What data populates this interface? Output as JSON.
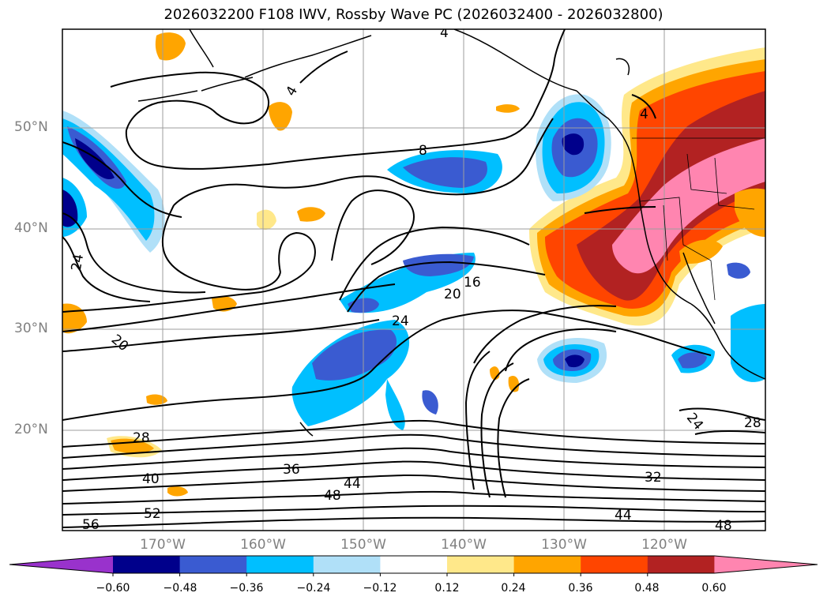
{
  "title": "2026032200 F108 IWV, Rossby Wave PC (2026032400 - 2026032800)",
  "latitude_labels": [
    "50°N",
    "40°N",
    "30°N",
    "20°N"
  ],
  "longitude_labels": [
    "170°W",
    "160°W",
    "150°W",
    "140°W",
    "130°W",
    "120°W"
  ],
  "contour_labels": [
    "4",
    "4",
    "4",
    "8",
    "16",
    "20",
    "24",
    "24",
    "20",
    "28",
    "36",
    "40",
    "44",
    "48",
    "52",
    "56",
    "32",
    "44",
    "48",
    "24",
    "28"
  ],
  "colorbar": {
    "tick_labels": [
      "−0.60",
      "−0.48",
      "−0.36",
      "−0.24",
      "−0.12",
      "0.12",
      "0.24",
      "0.36",
      "0.48",
      "0.60"
    ],
    "colors": [
      "#9932cc",
      "#00008b",
      "#3a5bd1",
      "#00bfff",
      "#b0e0f8",
      "#ffffff",
      "#ffe88a",
      "#ffa500",
      "#ff4500",
      "#b22222",
      "#ff85b0"
    ]
  },
  "colors": {
    "positive_light": "#ffe88a",
    "positive_orange": "#ffa500",
    "positive_redorange": "#ff4500",
    "positive_darkred": "#b22222",
    "positive_pink": "#ff85b0",
    "negative_light": "#b0e0f8",
    "negative_cyan": "#00bfff",
    "negative_blue": "#3a5bd1",
    "negative_navy": "#00008b"
  }
}
